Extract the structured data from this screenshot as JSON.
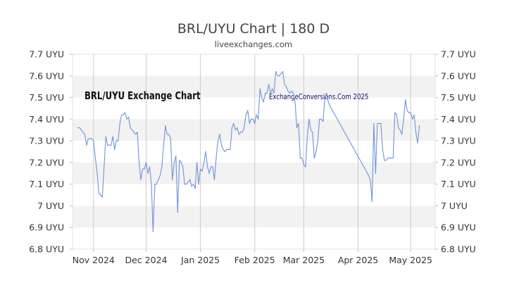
{
  "chart_data": {
    "type": "line",
    "title": "BRL/UYU Chart | 180 D",
    "subtitle": "liveexchanges.com",
    "watermarks": [
      "BRL/UYU Exchange Chart",
      "ExchangeConversions.Com 2025"
    ],
    "ylim": [
      6.8,
      7.7
    ],
    "y_ticks": [
      {
        "value": 7.7,
        "label": "7.7 UYU"
      },
      {
        "value": 7.6,
        "label": "7.6 UYU"
      },
      {
        "value": 7.5,
        "label": "7.5 UYU"
      },
      {
        "value": 7.4,
        "label": "7.4 UYU"
      },
      {
        "value": 7.3,
        "label": "7.3 UYU"
      },
      {
        "value": 7.2,
        "label": "7.2 UYU"
      },
      {
        "value": 7.1,
        "label": "7.1 UYU"
      },
      {
        "value": 7.0,
        "label": "7 UYU"
      },
      {
        "value": 6.9,
        "label": "6.9 UYU"
      },
      {
        "value": 6.8,
        "label": "6.8 UYU"
      }
    ],
    "x_range": [
      "2024-10-20",
      "2025-05-15"
    ],
    "x_ticks": [
      {
        "date": "2024-11-01",
        "label": "Nov 2024"
      },
      {
        "date": "2024-12-01",
        "label": "Dec 2024"
      },
      {
        "date": "2025-01-01",
        "label": "Jan 2025"
      },
      {
        "date": "2025-02-01",
        "label": "Feb 2025"
      },
      {
        "date": "2025-03-01",
        "label": "Mar 2025"
      },
      {
        "date": "2025-04-01",
        "label": "Apr 2025"
      },
      {
        "date": "2025-05-01",
        "label": "May 2025"
      }
    ],
    "grid": true,
    "line_color": "#6f93d9",
    "band_color": "#f2f2f2",
    "series": [
      {
        "values": [
          [
            "2024-10-23",
            7.36
          ],
          [
            "2024-10-24",
            7.36
          ],
          [
            "2024-10-25",
            7.35
          ],
          [
            "2024-10-26",
            7.34
          ],
          [
            "2024-10-27",
            7.33
          ],
          [
            "2024-10-28",
            7.28
          ],
          [
            "2024-10-29",
            7.31
          ],
          [
            "2024-10-30",
            7.31
          ],
          [
            "2024-10-31",
            7.31
          ],
          [
            "2024-11-01",
            7.3
          ],
          [
            "2024-11-02",
            7.22
          ],
          [
            "2024-11-03",
            7.16
          ],
          [
            "2024-11-04",
            7.06
          ],
          [
            "2024-11-05",
            7.05
          ],
          [
            "2024-11-06",
            7.04
          ],
          [
            "2024-11-07",
            7.18
          ],
          [
            "2024-11-08",
            7.32
          ],
          [
            "2024-11-09",
            7.28
          ],
          [
            "2024-11-10",
            7.28
          ],
          [
            "2024-11-11",
            7.28
          ],
          [
            "2024-11-12",
            7.32
          ],
          [
            "2024-11-13",
            7.26
          ],
          [
            "2024-11-14",
            7.3
          ],
          [
            "2024-11-15",
            7.3
          ],
          [
            "2024-11-16",
            7.38
          ],
          [
            "2024-11-17",
            7.42
          ],
          [
            "2024-11-18",
            7.42
          ],
          [
            "2024-11-19",
            7.43
          ],
          [
            "2024-11-20",
            7.4
          ],
          [
            "2024-11-21",
            7.41
          ],
          [
            "2024-11-22",
            7.36
          ],
          [
            "2024-11-23",
            7.35
          ],
          [
            "2024-11-24",
            7.34
          ],
          [
            "2024-11-25",
            7.33
          ],
          [
            "2024-11-26",
            7.34
          ],
          [
            "2024-11-27",
            7.2
          ],
          [
            "2024-11-28",
            7.12
          ],
          [
            "2024-11-29",
            7.17
          ],
          [
            "2024-11-30",
            7.17
          ],
          [
            "2024-12-01",
            7.2
          ],
          [
            "2024-12-02",
            7.15
          ],
          [
            "2024-12-03",
            7.18
          ],
          [
            "2024-12-04",
            7.1
          ],
          [
            "2024-12-05",
            6.88
          ],
          [
            "2024-12-06",
            7.1
          ],
          [
            "2024-12-07",
            7.1
          ],
          [
            "2024-12-08",
            7.12
          ],
          [
            "2024-12-09",
            7.14
          ],
          [
            "2024-12-10",
            7.18
          ],
          [
            "2024-12-11",
            7.28
          ],
          [
            "2024-12-12",
            7.37
          ],
          [
            "2024-12-13",
            7.33
          ],
          [
            "2024-12-14",
            7.33
          ],
          [
            "2024-12-15",
            7.31
          ],
          [
            "2024-12-16",
            7.12
          ],
          [
            "2024-12-17",
            7.2
          ],
          [
            "2024-12-18",
            7.23
          ],
          [
            "2024-12-19",
            6.97
          ],
          [
            "2024-12-20",
            7.21
          ],
          [
            "2024-12-21",
            7.2
          ],
          [
            "2024-12-22",
            7.18
          ],
          [
            "2024-12-23",
            7.1
          ],
          [
            "2024-12-24",
            7.1
          ],
          [
            "2024-12-25",
            7.11
          ],
          [
            "2024-12-26",
            7.12
          ],
          [
            "2024-12-27",
            7.09
          ],
          [
            "2024-12-28",
            7.1
          ],
          [
            "2024-12-29",
            7.08
          ],
          [
            "2024-12-30",
            7.2
          ],
          [
            "2024-12-31",
            7.1
          ],
          [
            "2025-01-01",
            7.17
          ],
          [
            "2025-01-02",
            7.16
          ],
          [
            "2025-01-03",
            7.2
          ],
          [
            "2025-01-04",
            7.25
          ],
          [
            "2025-01-05",
            7.18
          ],
          [
            "2025-01-06",
            7.15
          ],
          [
            "2025-01-07",
            7.18
          ],
          [
            "2025-01-08",
            7.18
          ],
          [
            "2025-01-09",
            7.12
          ],
          [
            "2025-01-10",
            7.22
          ],
          [
            "2025-01-11",
            7.3
          ],
          [
            "2025-01-12",
            7.33
          ],
          [
            "2025-01-13",
            7.28
          ],
          [
            "2025-01-14",
            7.26
          ],
          [
            "2025-01-15",
            7.25
          ],
          [
            "2025-01-16",
            7.26
          ],
          [
            "2025-01-17",
            7.26
          ],
          [
            "2025-01-18",
            7.26
          ],
          [
            "2025-01-19",
            7.36
          ],
          [
            "2025-01-20",
            7.38
          ],
          [
            "2025-01-21",
            7.35
          ],
          [
            "2025-01-22",
            7.36
          ],
          [
            "2025-01-23",
            7.33
          ],
          [
            "2025-01-24",
            7.34
          ],
          [
            "2025-01-25",
            7.34
          ],
          [
            "2025-01-26",
            7.36
          ],
          [
            "2025-01-27",
            7.42
          ],
          [
            "2025-01-28",
            7.44
          ],
          [
            "2025-01-29",
            7.38
          ],
          [
            "2025-01-30",
            7.4
          ],
          [
            "2025-01-31",
            7.4
          ],
          [
            "2025-02-01",
            7.38
          ],
          [
            "2025-02-02",
            7.42
          ],
          [
            "2025-02-03",
            7.4
          ],
          [
            "2025-02-04",
            7.54
          ],
          [
            "2025-02-05",
            7.5
          ],
          [
            "2025-02-06",
            7.48
          ],
          [
            "2025-02-07",
            7.52
          ],
          [
            "2025-02-08",
            7.52
          ],
          [
            "2025-02-09",
            7.56
          ],
          [
            "2025-02-10",
            7.52
          ],
          [
            "2025-02-11",
            7.54
          ],
          [
            "2025-02-12",
            7.52
          ],
          [
            "2025-02-13",
            7.62
          ],
          [
            "2025-02-14",
            7.6
          ],
          [
            "2025-02-15",
            7.6
          ],
          [
            "2025-02-16",
            7.61
          ],
          [
            "2025-02-17",
            7.62
          ],
          [
            "2025-02-18",
            7.56
          ],
          [
            "2025-02-19",
            7.55
          ],
          [
            "2025-02-20",
            7.53
          ],
          [
            "2025-02-21",
            7.52
          ],
          [
            "2025-02-22",
            7.53
          ],
          [
            "2025-02-23",
            7.52
          ],
          [
            "2025-02-24",
            7.48
          ],
          [
            "2025-02-25",
            7.36
          ],
          [
            "2025-02-26",
            7.38
          ],
          [
            "2025-02-27",
            7.22
          ],
          [
            "2025-02-28",
            7.22
          ],
          [
            "2025-03-01",
            7.19
          ],
          [
            "2025-03-02",
            7.18
          ],
          [
            "2025-03-03",
            7.32
          ],
          [
            "2025-03-04",
            7.4
          ],
          [
            "2025-03-05",
            7.35
          ],
          [
            "2025-03-06",
            7.34
          ],
          [
            "2025-03-07",
            7.22
          ],
          [
            "2025-03-08",
            7.25
          ],
          [
            "2025-03-09",
            7.3
          ],
          [
            "2025-03-10",
            7.4
          ],
          [
            "2025-03-11",
            7.4
          ],
          [
            "2025-03-12",
            7.39
          ],
          [
            "2025-03-13",
            7.5
          ],
          [
            "2025-03-14",
            7.52
          ],
          [
            "2025-03-15",
            7.48
          ],
          [
            "2025-03-16",
            7.46
          ],
          [
            "2025-04-07",
            7.14
          ],
          [
            "2025-04-08",
            7.12
          ],
          [
            "2025-04-09",
            7.02
          ],
          [
            "2025-04-10",
            7.38
          ],
          [
            "2025-04-11",
            7.15
          ],
          [
            "2025-04-12",
            7.38
          ],
          [
            "2025-04-13",
            7.38
          ],
          [
            "2025-04-14",
            7.38
          ],
          [
            "2025-04-15",
            7.26
          ],
          [
            "2025-04-16",
            7.21
          ],
          [
            "2025-04-17",
            7.21
          ],
          [
            "2025-04-18",
            7.22
          ],
          [
            "2025-04-19",
            7.22
          ],
          [
            "2025-04-20",
            7.22
          ],
          [
            "2025-04-21",
            7.22
          ],
          [
            "2025-04-22",
            7.43
          ],
          [
            "2025-04-23",
            7.42
          ],
          [
            "2025-04-24",
            7.36
          ],
          [
            "2025-04-25",
            7.35
          ],
          [
            "2025-04-26",
            7.33
          ],
          [
            "2025-04-27",
            7.4
          ],
          [
            "2025-04-28",
            7.49
          ],
          [
            "2025-04-29",
            7.44
          ],
          [
            "2025-04-30",
            7.43
          ],
          [
            "2025-05-01",
            7.43
          ],
          [
            "2025-05-02",
            7.4
          ],
          [
            "2025-05-03",
            7.42
          ],
          [
            "2025-05-04",
            7.34
          ],
          [
            "2025-05-05",
            7.29
          ],
          [
            "2025-05-06",
            7.37
          ]
        ]
      }
    ]
  }
}
